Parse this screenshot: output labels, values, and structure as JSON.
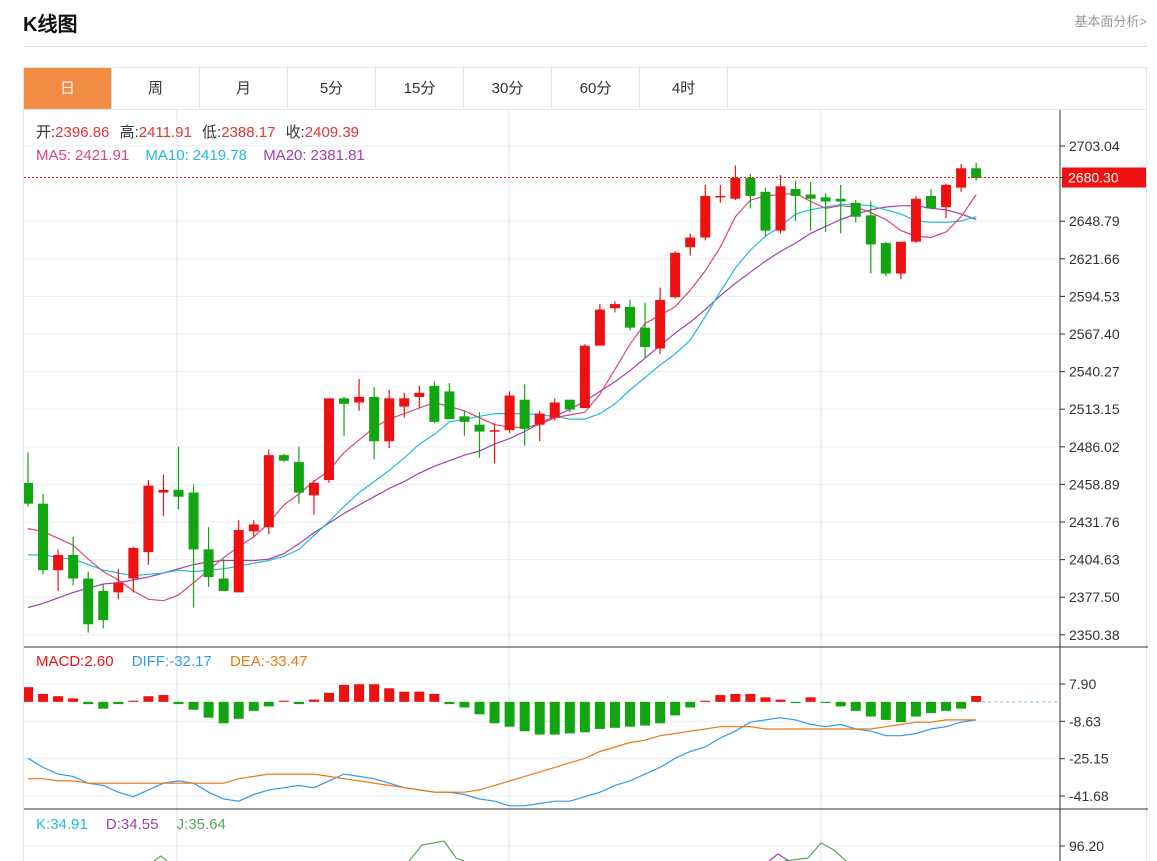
{
  "header": {
    "title": "K线图",
    "more_link": "基本面分析>"
  },
  "tabs": [
    {
      "label": "日",
      "active": true
    },
    {
      "label": "周",
      "active": false
    },
    {
      "label": "月",
      "active": false
    },
    {
      "label": "5分",
      "active": false
    },
    {
      "label": "15分",
      "active": false
    },
    {
      "label": "30分",
      "active": false
    },
    {
      "label": "60分",
      "active": false
    },
    {
      "label": "4时",
      "active": false
    }
  ],
  "colors": {
    "up": "#ee1111",
    "down": "#11a611",
    "ma5": "#dd4477",
    "ma10": "#22bbdd",
    "ma20": "#a040b0",
    "diff": "#3399ee",
    "dea": "#ee7711",
    "grid": "#e6edf2",
    "accent": "#f28c44"
  },
  "ohlc_info": {
    "open_label": "开:",
    "open": "2396.86",
    "high_label": "高:",
    "high": "2411.91",
    "low_label": "低:",
    "low": "2388.17",
    "close_label": "收:",
    "close": "2409.39"
  },
  "ma_info": {
    "ma5_label": "MA5:",
    "ma5": "2421.91",
    "ma10_label": "MA10:",
    "ma10": "2419.78",
    "ma20_label": "MA20:",
    "ma20": "2381.81"
  },
  "macd_info": {
    "macd_label": "MACD:",
    "macd": "2.60",
    "diff_label": "DIFF:",
    "diff": "-32.17",
    "dea_label": "DEA:",
    "dea": "-33.47"
  },
  "kdj_info": {
    "k_label": "K:",
    "k": "34.91",
    "d_label": "D:",
    "d": "34.55",
    "j_label": "J:",
    "j": "35.64"
  },
  "chart_data": {
    "type": "candlestick",
    "price_axis": {
      "ticks": [
        "2703.04",
        "2680.30",
        "2648.79",
        "2621.66",
        "2594.53",
        "2567.40",
        "2540.27",
        "2513.15",
        "2486.02",
        "2458.89",
        "2431.76",
        "2404.63",
        "2377.50",
        "2350.38"
      ],
      "range": [
        2350.38,
        2703.04
      ],
      "current_price": "2680.30"
    },
    "candles": [
      {
        "o": 2460,
        "h": 2482,
        "l": 2443,
        "c": 2445
      },
      {
        "o": 2445,
        "h": 2452,
        "l": 2394,
        "c": 2397
      },
      {
        "o": 2397,
        "h": 2412,
        "l": 2382,
        "c": 2408
      },
      {
        "o": 2408,
        "h": 2421,
        "l": 2386,
        "c": 2391
      },
      {
        "o": 2391,
        "h": 2396,
        "l": 2352,
        "c": 2358
      },
      {
        "o": 2382,
        "h": 2387,
        "l": 2355,
        "c": 2361
      },
      {
        "o": 2381,
        "h": 2398,
        "l": 2376,
        "c": 2388
      },
      {
        "o": 2391,
        "h": 2414,
        "l": 2381,
        "c": 2413
      },
      {
        "o": 2410,
        "h": 2462,
        "l": 2401,
        "c": 2458
      },
      {
        "o": 2453,
        "h": 2466,
        "l": 2436,
        "c": 2455
      },
      {
        "o": 2455,
        "h": 2486,
        "l": 2441,
        "c": 2450
      },
      {
        "o": 2453,
        "h": 2459,
        "l": 2370,
        "c": 2412
      },
      {
        "o": 2412,
        "h": 2428,
        "l": 2385,
        "c": 2392
      },
      {
        "o": 2391,
        "h": 2405,
        "l": 2383,
        "c": 2382
      },
      {
        "o": 2381,
        "h": 2433,
        "l": 2381,
        "c": 2426
      },
      {
        "o": 2425,
        "h": 2433,
        "l": 2421,
        "c": 2430
      },
      {
        "o": 2428,
        "h": 2484,
        "l": 2423,
        "c": 2480
      },
      {
        "o": 2480,
        "h": 2481,
        "l": 2475,
        "c": 2476
      },
      {
        "o": 2475,
        "h": 2486,
        "l": 2445,
        "c": 2453
      },
      {
        "o": 2451,
        "h": 2462,
        "l": 2437,
        "c": 2460
      },
      {
        "o": 2462,
        "h": 2521,
        "l": 2460,
        "c": 2521
      },
      {
        "o": 2521,
        "h": 2522,
        "l": 2494,
        "c": 2517
      },
      {
        "o": 2518,
        "h": 2535,
        "l": 2512,
        "c": 2522
      },
      {
        "o": 2522,
        "h": 2529,
        "l": 2477,
        "c": 2490
      },
      {
        "o": 2490,
        "h": 2527,
        "l": 2485,
        "c": 2521
      },
      {
        "o": 2515,
        "h": 2525,
        "l": 2507,
        "c": 2521
      },
      {
        "o": 2522,
        "h": 2530,
        "l": 2514,
        "c": 2525
      },
      {
        "o": 2530,
        "h": 2533,
        "l": 2503,
        "c": 2504
      },
      {
        "o": 2526,
        "h": 2532,
        "l": 2506,
        "c": 2506
      },
      {
        "o": 2508,
        "h": 2512,
        "l": 2494,
        "c": 2504
      },
      {
        "o": 2502,
        "h": 2511,
        "l": 2478,
        "c": 2497
      },
      {
        "o": 2497,
        "h": 2503,
        "l": 2474,
        "c": 2498
      },
      {
        "o": 2498,
        "h": 2526,
        "l": 2496,
        "c": 2523
      },
      {
        "o": 2520,
        "h": 2531,
        "l": 2487,
        "c": 2499
      },
      {
        "o": 2502,
        "h": 2512,
        "l": 2490,
        "c": 2510
      },
      {
        "o": 2507,
        "h": 2521,
        "l": 2505,
        "c": 2518
      },
      {
        "o": 2520,
        "h": 2520,
        "l": 2511,
        "c": 2513
      },
      {
        "o": 2514,
        "h": 2560,
        "l": 2514,
        "c": 2559
      },
      {
        "o": 2559,
        "h": 2589,
        "l": 2559,
        "c": 2585
      },
      {
        "o": 2586,
        "h": 2591,
        "l": 2583,
        "c": 2589
      },
      {
        "o": 2587,
        "h": 2592,
        "l": 2570,
        "c": 2572
      },
      {
        "o": 2572,
        "h": 2590,
        "l": 2550,
        "c": 2558
      },
      {
        "o": 2557,
        "h": 2601,
        "l": 2553,
        "c": 2592
      },
      {
        "o": 2594,
        "h": 2627,
        "l": 2593,
        "c": 2626
      },
      {
        "o": 2630,
        "h": 2640,
        "l": 2624,
        "c": 2637
      },
      {
        "o": 2637,
        "h": 2675,
        "l": 2635,
        "c": 2667
      },
      {
        "o": 2667,
        "h": 2675,
        "l": 2662,
        "c": 2667
      },
      {
        "o": 2665,
        "h": 2689,
        "l": 2664,
        "c": 2680
      },
      {
        "o": 2680,
        "h": 2683,
        "l": 2658,
        "c": 2667
      },
      {
        "o": 2670,
        "h": 2673,
        "l": 2638,
        "c": 2642
      },
      {
        "o": 2642,
        "h": 2682,
        "l": 2640,
        "c": 2674
      },
      {
        "o": 2672,
        "h": 2678,
        "l": 2649,
        "c": 2667
      },
      {
        "o": 2668,
        "h": 2677,
        "l": 2642,
        "c": 2665
      },
      {
        "o": 2666,
        "h": 2669,
        "l": 2641,
        "c": 2663
      },
      {
        "o": 2665,
        "h": 2675,
        "l": 2640,
        "c": 2663
      },
      {
        "o": 2662,
        "h": 2664,
        "l": 2648,
        "c": 2652
      },
      {
        "o": 2653,
        "h": 2663,
        "l": 2611,
        "c": 2632
      },
      {
        "o": 2633,
        "h": 2634,
        "l": 2609,
        "c": 2611
      },
      {
        "o": 2611,
        "h": 2634,
        "l": 2607,
        "c": 2634
      },
      {
        "o": 2634,
        "h": 2667,
        "l": 2633,
        "c": 2665
      },
      {
        "o": 2667,
        "h": 2672,
        "l": 2659,
        "c": 2658
      },
      {
        "o": 2659,
        "h": 2676,
        "l": 2651,
        "c": 2675
      },
      {
        "o": 2673,
        "h": 2690,
        "l": 2670,
        "c": 2687
      },
      {
        "o": 2687,
        "h": 2691,
        "l": 2678,
        "c": 2680
      }
    ],
    "ma5": [
      2427,
      2425,
      2420,
      2415,
      2405,
      2396,
      2390,
      2382,
      2376,
      2375,
      2379,
      2388,
      2397,
      2406,
      2414,
      2421,
      2431,
      2444,
      2452,
      2461,
      2469,
      2482,
      2491,
      2500,
      2506,
      2510,
      2514,
      2518,
      2515,
      2512,
      2507,
      2502,
      2500,
      2500,
      2502,
      2507,
      2509,
      2511,
      2524,
      2542,
      2560,
      2575,
      2581,
      2587,
      2599,
      2613,
      2630,
      2652,
      2664,
      2667,
      2668,
      2669,
      2663,
      2658,
      2660,
      2659,
      2655,
      2650,
      2642,
      2638,
      2637,
      2641,
      2652,
      2668
    ],
    "ma10": [
      2408,
      2408,
      2406,
      2405,
      2401,
      2397,
      2395,
      2393,
      2394,
      2395,
      2397,
      2396,
      2397,
      2398,
      2400,
      2402,
      2404,
      2407,
      2412,
      2422,
      2432,
      2443,
      2453,
      2461,
      2469,
      2478,
      2488,
      2495,
      2504,
      2506,
      2508,
      2510,
      2510,
      2510,
      2509,
      2508,
      2506,
      2506,
      2510,
      2517,
      2527,
      2536,
      2545,
      2553,
      2563,
      2580,
      2598,
      2615,
      2628,
      2638,
      2645,
      2654,
      2657,
      2659,
      2661,
      2661,
      2660,
      2657,
      2654,
      2649,
      2648,
      2648,
      2649,
      2652
    ],
    "ma20": [
      2370,
      2373,
      2377,
      2381,
      2384,
      2387,
      2388,
      2390,
      2392,
      2395,
      2398,
      2401,
      2403,
      2404,
      2404,
      2404,
      2405,
      2409,
      2416,
      2424,
      2431,
      2438,
      2444,
      2450,
      2456,
      2461,
      2467,
      2472,
      2476,
      2480,
      2483,
      2488,
      2492,
      2497,
      2503,
      2508,
      2513,
      2519,
      2526,
      2533,
      2541,
      2550,
      2559,
      2568,
      2576,
      2585,
      2595,
      2604,
      2612,
      2620,
      2627,
      2633,
      2640,
      2645,
      2650,
      2654,
      2657,
      2659,
      2660,
      2660,
      2658,
      2657,
      2654,
      2650
    ],
    "macd_axis": {
      "ticks": [
        "7.90",
        "-8.63",
        "-25.15",
        "-41.68"
      ],
      "range": [
        -41.68,
        7.9
      ]
    },
    "macd_hist": [
      6.5,
      3.5,
      2.5,
      1.5,
      -1.0,
      -3.0,
      -1.0,
      0.5,
      2.5,
      3.0,
      -1.0,
      -3.5,
      -7.0,
      -9.5,
      -7.5,
      -4.0,
      -2.0,
      0.5,
      -1.0,
      1.0,
      4.0,
      7.5,
      7.8,
      7.8,
      6.0,
      4.5,
      4.5,
      3.5,
      -1.0,
      -2.5,
      -5.5,
      -9.5,
      -11.0,
      -13.0,
      -14.5,
      -14.5,
      -14.0,
      -13.5,
      -12.0,
      -11.5,
      -11.0,
      -10.5,
      -9.5,
      -6.0,
      -2.5,
      0.5,
      3.0,
      3.5,
      3.5,
      2.0,
      1.0,
      -0.5,
      2.0,
      -0.5,
      -2.0,
      -4.0,
      -6.5,
      -8.0,
      -9.0,
      -6.5,
      -5.0,
      -4.0,
      -3.0,
      2.6
    ],
    "diff": [
      -25,
      -29,
      -32,
      -33,
      -36,
      -37,
      -40,
      -42,
      -39,
      -36,
      -35,
      -36,
      -40,
      -43,
      -44,
      -41,
      -39,
      -38,
      -37,
      -38,
      -35,
      -32,
      -33,
      -34,
      -36,
      -38,
      -39,
      -40,
      -40,
      -41,
      -43,
      -44,
      -46,
      -46,
      -45,
      -44,
      -44,
      -42,
      -40,
      -37,
      -35,
      -32,
      -29,
      -25,
      -22,
      -20,
      -16,
      -13,
      -9,
      -8,
      -7,
      -8,
      -10,
      -11,
      -10,
      -12,
      -13,
      -15,
      -15,
      -14,
      -12,
      -11,
      -9,
      -8
    ],
    "dea": [
      -34,
      -34,
      -35,
      -35,
      -36,
      -36,
      -36,
      -36,
      -36,
      -36,
      -36,
      -36,
      -36,
      -36,
      -34,
      -33,
      -32,
      -32,
      -32,
      -32,
      -33,
      -34,
      -35,
      -36,
      -37,
      -38,
      -39,
      -40,
      -40,
      -40,
      -39,
      -37,
      -35,
      -33,
      -31,
      -29,
      -27,
      -25,
      -22,
      -20,
      -18,
      -17,
      -15,
      -14,
      -13,
      -12,
      -11,
      -11,
      -11,
      -12,
      -12,
      -12,
      -12,
      -12,
      -12,
      -12,
      -12,
      -11,
      -10,
      -9,
      -9,
      -8,
      -8,
      -8
    ],
    "kdj_axis": {
      "ticks": [
        "96.20"
      ]
    }
  }
}
